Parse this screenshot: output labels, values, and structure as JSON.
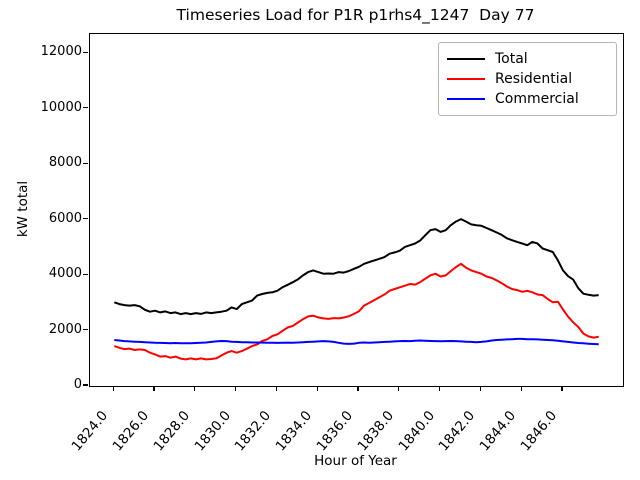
{
  "chart_data": {
    "type": "line",
    "title": "Timeseries Load for P1R p1rhs4_1247  Day 77",
    "xlabel": "Hour of Year",
    "ylabel": "kW total",
    "grid": false,
    "legend_position": "upper right",
    "xlim": [
      1822.81,
      1848.94
    ],
    "ylim": [
      0,
      12700
    ],
    "x_start": 1824.0,
    "x_step": 0.25,
    "x_ticks": [
      1824,
      1826,
      1828,
      1830,
      1832,
      1834,
      1836,
      1838,
      1840,
      1842,
      1844,
      1846
    ],
    "x_tick_labels": [
      "1824.0",
      "1826.0",
      "1828.0",
      "1830.0",
      "1832.0",
      "1834.0",
      "1836.0",
      "1838.0",
      "1840.0",
      "1842.0",
      "1844.0",
      "1846.0"
    ],
    "y_ticks": [
      0,
      2000,
      4000,
      6000,
      8000,
      10000,
      12000
    ],
    "y_tick_labels": [
      "0",
      "2000",
      "4000",
      "6000",
      "8000",
      "10000",
      "12000"
    ],
    "series": [
      {
        "name": "Total",
        "color": "#000000",
        "values": [
          3020,
          2955,
          2920,
          2900,
          2920,
          2875,
          2750,
          2680,
          2715,
          2655,
          2690,
          2630,
          2655,
          2595,
          2630,
          2595,
          2630,
          2600,
          2655,
          2630,
          2655,
          2680,
          2715,
          2835,
          2775,
          2955,
          3020,
          3080,
          3260,
          3320,
          3360,
          3380,
          3440,
          3565,
          3650,
          3745,
          3845,
          3990,
          4110,
          4170,
          4110,
          4050,
          4060,
          4050,
          4110,
          4090,
          4150,
          4230,
          4300,
          4410,
          4470,
          4530,
          4590,
          4650,
          4775,
          4820,
          4880,
          5020,
          5080,
          5140,
          5250,
          5440,
          5620,
          5660,
          5560,
          5620,
          5800,
          5930,
          6020,
          5930,
          5830,
          5800,
          5780,
          5700,
          5620,
          5540,
          5450,
          5330,
          5260,
          5200,
          5140,
          5080,
          5200,
          5140,
          4960,
          4900,
          4836,
          4530,
          4170,
          3960,
          3840,
          3530,
          3330,
          3290,
          3260,
          3280
        ]
      },
      {
        "name": "Residential",
        "color": "#ff0000",
        "values": [
          1440,
          1380,
          1330,
          1350,
          1300,
          1320,
          1300,
          1200,
          1140,
          1060,
          1080,
          1020,
          1060,
          990,
          960,
          995,
          960,
          995,
          960,
          975,
          995,
          1100,
          1200,
          1260,
          1200,
          1260,
          1345,
          1440,
          1500,
          1625,
          1685,
          1805,
          1865,
          1990,
          2110,
          2170,
          2290,
          2410,
          2510,
          2535,
          2475,
          2440,
          2420,
          2450,
          2440,
          2470,
          2520,
          2600,
          2700,
          2900,
          3000,
          3100,
          3200,
          3300,
          3440,
          3500,
          3560,
          3620,
          3680,
          3660,
          3750,
          3870,
          3990,
          4050,
          3950,
          3990,
          4145,
          4290,
          4410,
          4270,
          4170,
          4110,
          4050,
          3950,
          3900,
          3810,
          3710,
          3590,
          3500,
          3460,
          3400,
          3430,
          3380,
          3300,
          3280,
          3140,
          3020,
          3040,
          2760,
          2500,
          2300,
          2130,
          1890,
          1790,
          1745,
          1775
        ]
      },
      {
        "name": "Commercial",
        "color": "#0000ff",
        "values": [
          1660,
          1640,
          1620,
          1610,
          1600,
          1590,
          1580,
          1570,
          1560,
          1555,
          1550,
          1545,
          1550,
          1545,
          1540,
          1545,
          1550,
          1560,
          1570,
          1590,
          1610,
          1625,
          1620,
          1600,
          1590,
          1580,
          1575,
          1570,
          1570,
          1565,
          1560,
          1560,
          1555,
          1560,
          1565,
          1560,
          1570,
          1580,
          1590,
          1600,
          1610,
          1620,
          1610,
          1590,
          1560,
          1530,
          1520,
          1530,
          1560,
          1570,
          1560,
          1570,
          1580,
          1590,
          1600,
          1610,
          1620,
          1625,
          1620,
          1630,
          1640,
          1630,
          1625,
          1620,
          1615,
          1620,
          1625,
          1620,
          1610,
          1600,
          1590,
          1580,
          1590,
          1610,
          1640,
          1660,
          1670,
          1680,
          1690,
          1700,
          1700,
          1690,
          1690,
          1680,
          1670,
          1660,
          1650,
          1630,
          1610,
          1590,
          1570,
          1550,
          1540,
          1525,
          1515,
          1505
        ]
      }
    ]
  }
}
